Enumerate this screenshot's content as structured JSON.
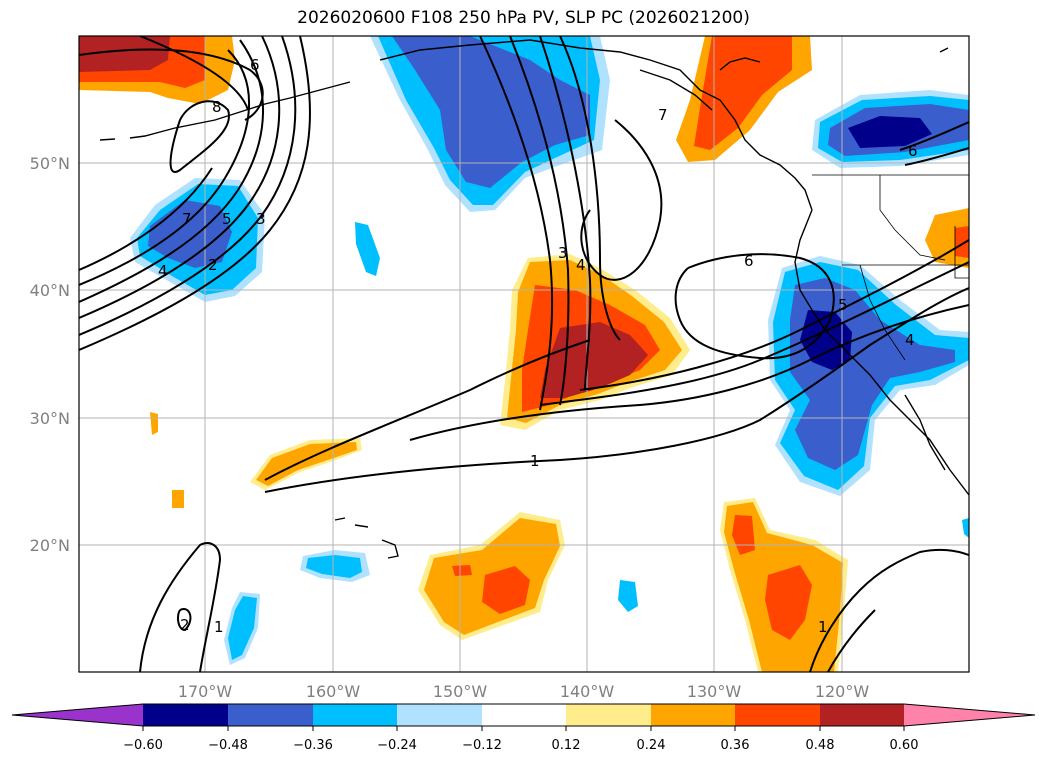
{
  "title": "2026020600 F108 250 hPa PV, SLP PC (2026021200)",
  "map": {
    "lon_labels": [
      "170°W",
      "160°W",
      "150°W",
      "140°W",
      "130°W",
      "120°W"
    ],
    "lat_labels": [
      "50°N",
      "40°N",
      "30°N",
      "20°N"
    ]
  },
  "colorbar": {
    "ticks": [
      "−0.60",
      "−0.48",
      "−0.36",
      "−0.24",
      "−0.12",
      "0.12",
      "0.24",
      "0.36",
      "0.48",
      "0.60"
    ],
    "colors": [
      "#9a33cc",
      "#00008b",
      "#3a5fcd",
      "#00bfff",
      "#b0e2ff",
      "#ffffff",
      "#ffec8b",
      "#ffa500",
      "#ff4500",
      "#b22222",
      "#ff82ab"
    ]
  },
  "contour_labels": [
    "6",
    "8",
    "7",
    "5",
    "3",
    "2",
    "4",
    "3",
    "4",
    "7",
    "6",
    "1",
    "5",
    "4",
    "6",
    "2",
    "1",
    "1"
  ]
}
